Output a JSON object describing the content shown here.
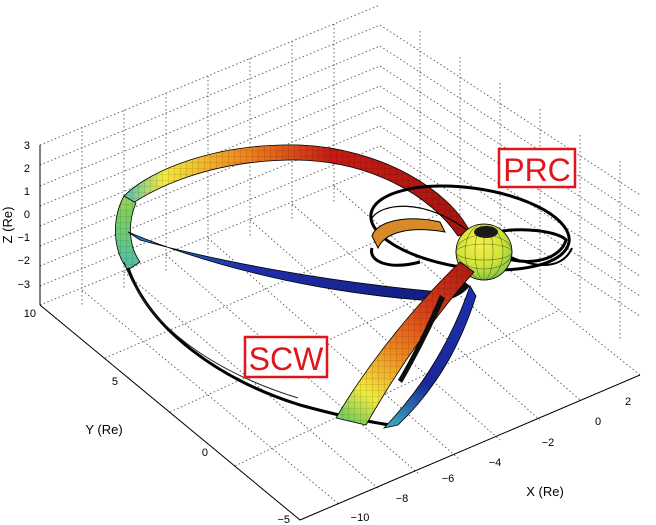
{
  "figure": {
    "labels": {
      "prc": "PRC",
      "scw": "SCW"
    },
    "axes": {
      "x": {
        "label": "X (Re)",
        "ticks": [
          "2",
          "0",
          "−2",
          "−4",
          "−6",
          "−8",
          "−10"
        ]
      },
      "y": {
        "label": "Y (Re)",
        "ticks": [
          "10",
          "5",
          "0",
          "−5"
        ]
      },
      "z": {
        "label": "Z (Re)",
        "ticks": [
          "3",
          "2",
          "1",
          "0",
          "−1",
          "−2",
          "−3"
        ]
      }
    },
    "colors": {
      "red": "#c81a12",
      "orange": "#f0841c",
      "yellow": "#f2ea3a",
      "green": "#7ccf5c",
      "cyan": "#3fb9c6",
      "blue": "#1f2fae",
      "navy": "#111b7a",
      "label_red": "#e0161b"
    },
    "icons": [
      "earth-sphere-icon"
    ]
  }
}
